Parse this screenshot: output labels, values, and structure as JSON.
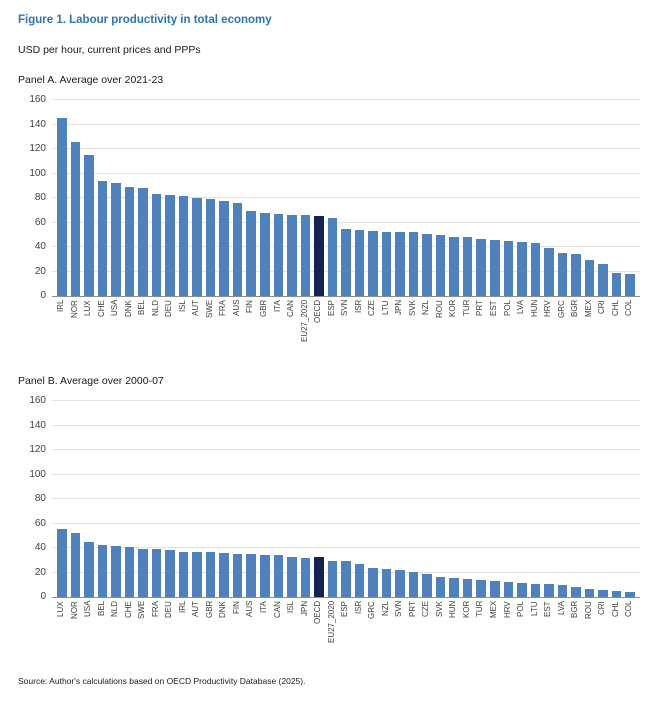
{
  "page": {
    "title": "Figure 1. Labour productivity in total economy",
    "subtitle": "USD per hour, current prices and PPPs",
    "source": "Source: Author's calculations based on OECD Productivity Database (2025)."
  },
  "colors": {
    "title_blue": "#2e74b5",
    "bar_blue": "#4f81bd",
    "bar_highlight_navy": "#12234f",
    "gridline_gray": "#e2e2e2",
    "axis_line_gray": "#8c8c8c",
    "axis_text_gray": "#404040"
  },
  "chart_data": [
    {
      "type": "bar",
      "panel_label": "Panel A. Average over 2021-23",
      "title": "Figure 1. Labour productivity in total economy",
      "subtitle": "USD per hour, current prices and PPPs",
      "xlabel": "",
      "ylabel": "",
      "ylim": [
        0,
        160
      ],
      "ytick_step": 20,
      "grid": true,
      "legend": "none",
      "highlight_category": "OECD",
      "categories": [
        "IRL",
        "NOR",
        "LUX",
        "CHE",
        "USA",
        "DNK",
        "BEL",
        "NLD",
        "DEU",
        "ISL",
        "AUT",
        "SWE",
        "FRA",
        "AUS",
        "FIN",
        "GBR",
        "ITA",
        "CAN",
        "EU27_2020",
        "OECD",
        "ESP",
        "SVN",
        "ISR",
        "CZE",
        "LTU",
        "JPN",
        "SVK",
        "NZL",
        "ROU",
        "KOR",
        "TUR",
        "PRT",
        "EST",
        "POL",
        "LVA",
        "HUN",
        "HRV",
        "GRC",
        "BGR",
        "MEX",
        "CRI",
        "CHL",
        "COL"
      ],
      "values": [
        145.5,
        125.5,
        115,
        94,
        92.5,
        89,
        88.5,
        83,
        82.5,
        82,
        80,
        79.5,
        77.5,
        76,
        69.5,
        67.5,
        67,
        66.5,
        66,
        65.5,
        64,
        54.5,
        53.5,
        53,
        52.5,
        52.5,
        52,
        50.5,
        49.5,
        48.5,
        48,
        46.5,
        46,
        45,
        44,
        43,
        39,
        35.5,
        34,
        29,
        26,
        19,
        18
      ]
    },
    {
      "type": "bar",
      "panel_label": "Panel B. Average over 2000-07",
      "title": "Figure 1. Labour productivity in total economy",
      "subtitle": "USD per hour, current prices and PPPs",
      "xlabel": "",
      "ylabel": "",
      "ylim": [
        0,
        160
      ],
      "ytick_step": 20,
      "grid": true,
      "legend": "none",
      "highlight_category": "OECD",
      "categories": [
        "LUX",
        "NOR",
        "USA",
        "BEL",
        "NLD",
        "CHE",
        "SWE",
        "FRA",
        "DEU",
        "IRL",
        "AUT",
        "GBR",
        "DNK",
        "FIN",
        "AUS",
        "ITA",
        "CAN",
        "ISL",
        "JPN",
        "OECD",
        "EU27_2020",
        "ESP",
        "ISR",
        "GRC",
        "NZL",
        "SVN",
        "PRT",
        "CZE",
        "SVK",
        "HUN",
        "KOR",
        "TUR",
        "MEX",
        "HRV",
        "POL",
        "LTU",
        "EST",
        "LVA",
        "BGR",
        "ROU",
        "CRI",
        "CHL",
        "COL"
      ],
      "values": [
        55.5,
        52,
        45,
        42.5,
        41.5,
        40.5,
        39.5,
        39.5,
        38.5,
        37,
        37,
        36.5,
        36,
        35.5,
        35,
        34.5,
        34,
        32.5,
        31.5,
        33,
        29.5,
        29.5,
        27,
        23.5,
        23,
        22,
        20.5,
        18.5,
        16,
        15.5,
        15,
        14,
        13,
        12.5,
        11.5,
        11,
        10.5,
        10,
        8.5,
        6.5,
        6,
        5,
        4
      ]
    }
  ]
}
